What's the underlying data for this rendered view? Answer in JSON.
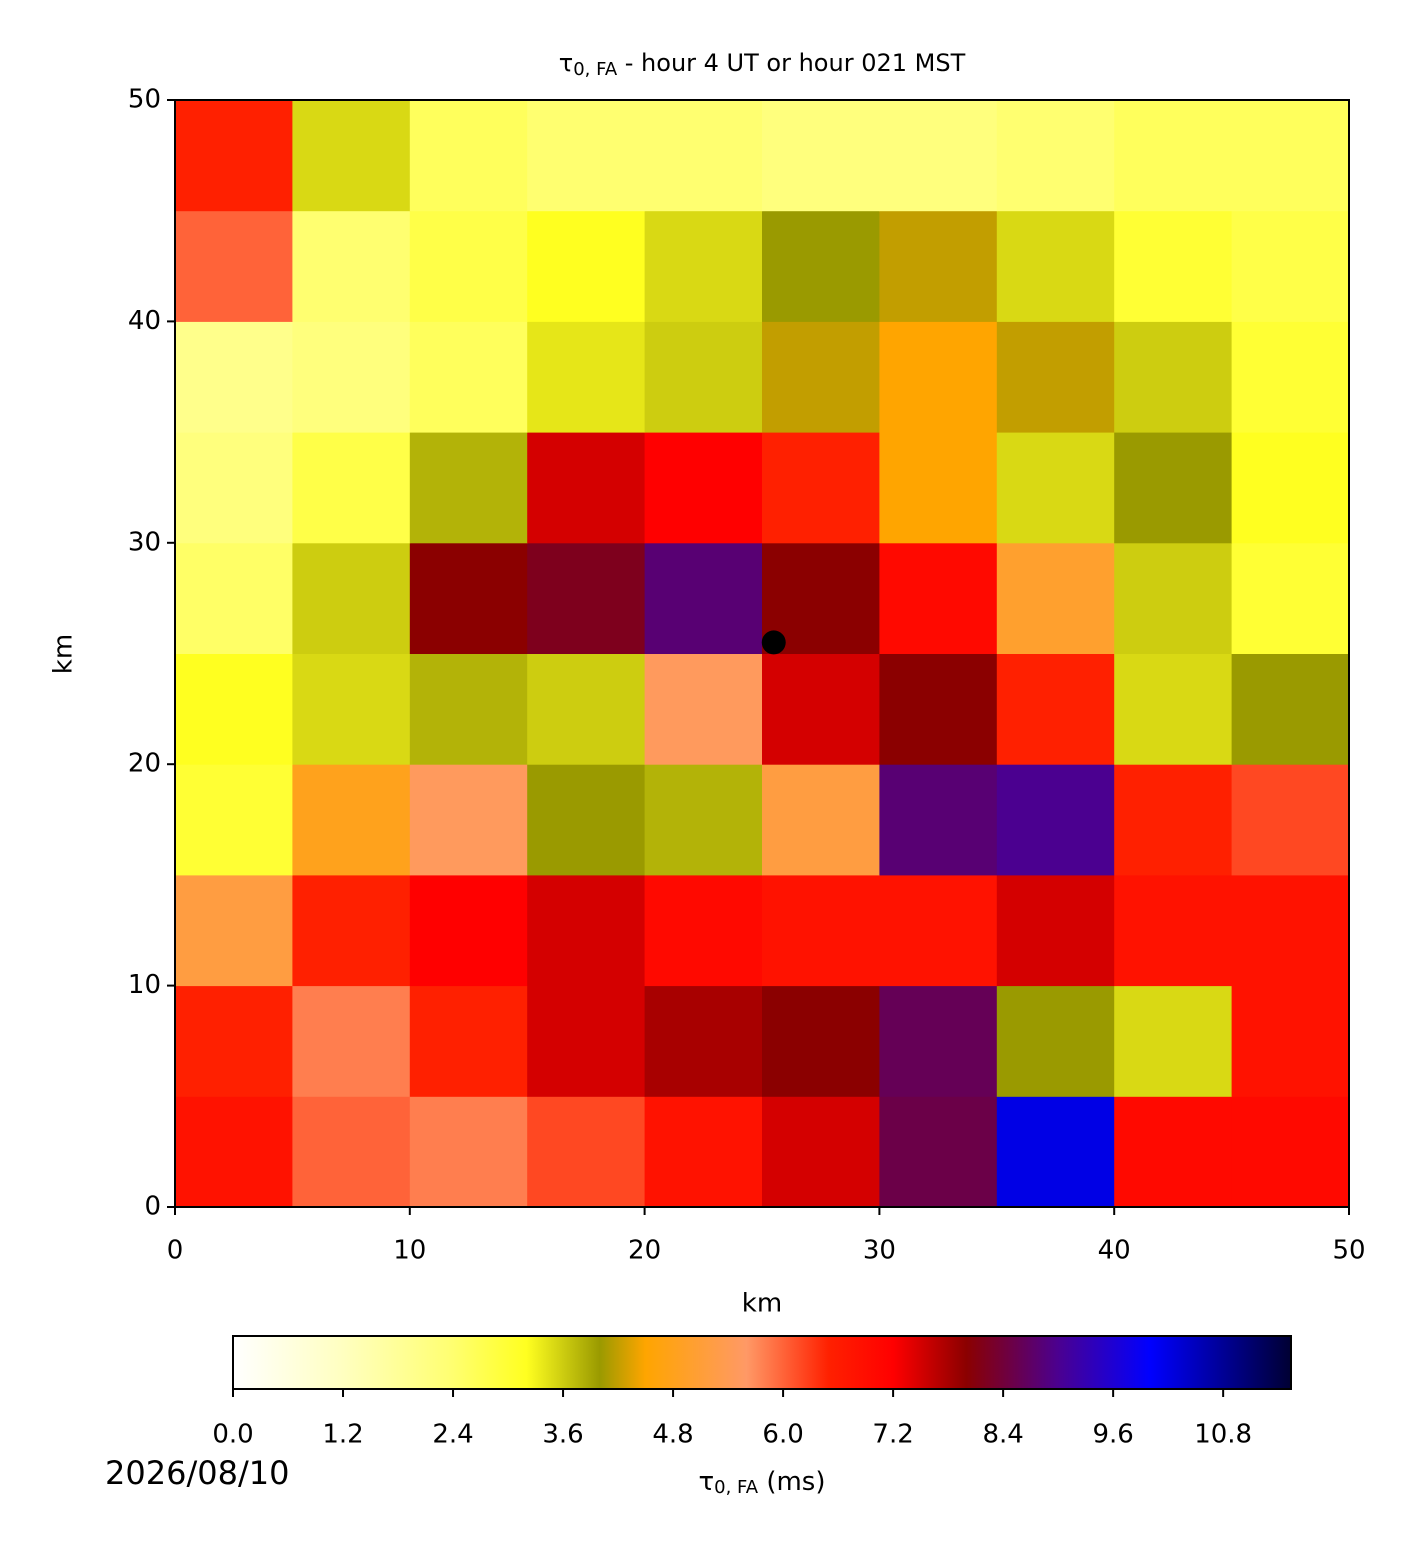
{
  "chart_data": {
    "type": "heatmap",
    "title_symbol": "τ",
    "title_subscript": "0, FA",
    "title_text": " - hour 4 UT or hour 021 MST",
    "xlabel": "km",
    "ylabel": "km",
    "x": [
      2.5,
      7.5,
      12.5,
      17.5,
      22.5,
      27.5,
      32.5,
      37.5,
      42.5,
      47.5
    ],
    "y": [
      2.5,
      7.5,
      12.5,
      17.5,
      22.5,
      27.5,
      32.5,
      37.5,
      42.5,
      47.5
    ],
    "z": [
      [
        6.8,
        6.0,
        5.8,
        6.2,
        6.8,
        7.5,
        8.5,
        10.2,
        7.0,
        7.0
      ],
      [
        6.5,
        5.8,
        6.5,
        7.5,
        7.8,
        8.0,
        8.6,
        4.0,
        3.5,
        6.8
      ],
      [
        5.2,
        6.5,
        7.2,
        7.5,
        7.0,
        6.8,
        6.8,
        7.5,
        6.8,
        6.8
      ],
      [
        3.0,
        4.8,
        5.5,
        4.0,
        3.8,
        5.2,
        8.8,
        9.0,
        6.5,
        6.2
      ],
      [
        3.2,
        3.5,
        3.8,
        3.6,
        5.5,
        7.5,
        8.0,
        6.5,
        3.5,
        4.0
      ],
      [
        2.5,
        3.6,
        8.0,
        8.2,
        8.8,
        8.0,
        7.0,
        5.0,
        3.6,
        3.0
      ],
      [
        2.2,
        2.8,
        3.8,
        7.5,
        7.2,
        6.5,
        4.5,
        3.5,
        4.0,
        3.2
      ],
      [
        2.0,
        2.2,
        2.6,
        3.4,
        3.6,
        4.2,
        4.5,
        4.2,
        3.6,
        3.0
      ],
      [
        6.0,
        2.4,
        2.8,
        3.2,
        3.5,
        4.0,
        4.2,
        3.5,
        3.0,
        2.8
      ],
      [
        6.5,
        3.5,
        2.6,
        2.4,
        2.4,
        2.2,
        2.2,
        2.4,
        2.6,
        2.6
      ]
    ],
    "xlim": [
      0,
      50
    ],
    "ylim": [
      0,
      50
    ],
    "xticks": [
      0,
      10,
      20,
      30,
      40,
      50
    ],
    "yticks": [
      0,
      10,
      20,
      30,
      40,
      50
    ],
    "marker": {
      "x": 25.5,
      "y": 25.5,
      "color": "#000000"
    },
    "clim": [
      0,
      11.54
    ],
    "colormap": [
      [
        0,
        "#ffffff"
      ],
      [
        1.2,
        "#ffffc0"
      ],
      [
        2.4,
        "#ffff70"
      ],
      [
        3.2,
        "#ffff20"
      ],
      [
        4.0,
        "#9a9a00"
      ],
      [
        4.5,
        "#ffa500"
      ],
      [
        5.6,
        "#ff9966"
      ],
      [
        6.5,
        "#ff2000"
      ],
      [
        7.2,
        "#ff0000"
      ],
      [
        8.0,
        "#8b0000"
      ],
      [
        9.0,
        "#4b0090"
      ],
      [
        10.0,
        "#0000ff"
      ],
      [
        11.54,
        "#000033"
      ]
    ],
    "cticks": [
      {
        "value": 0,
        "label": "0.0"
      },
      {
        "value": 1.2,
        "label": "1.2"
      },
      {
        "value": 2.4,
        "label": "2.4"
      },
      {
        "value": 3.6,
        "label": "3.6"
      },
      {
        "value": 4.8,
        "label": "4.8"
      },
      {
        "value": 6.0,
        "label": "6.0"
      },
      {
        "value": 7.2,
        "label": "7.2"
      },
      {
        "value": 8.4,
        "label": "8.4"
      },
      {
        "value": 9.6,
        "label": "9.6"
      },
      {
        "value": 10.8,
        "label": "10.8"
      }
    ],
    "clabel_symbol": "τ",
    "clabel_subscript": "0, FA",
    "clabel_text": " (ms)",
    "date": "2026/08/10"
  }
}
